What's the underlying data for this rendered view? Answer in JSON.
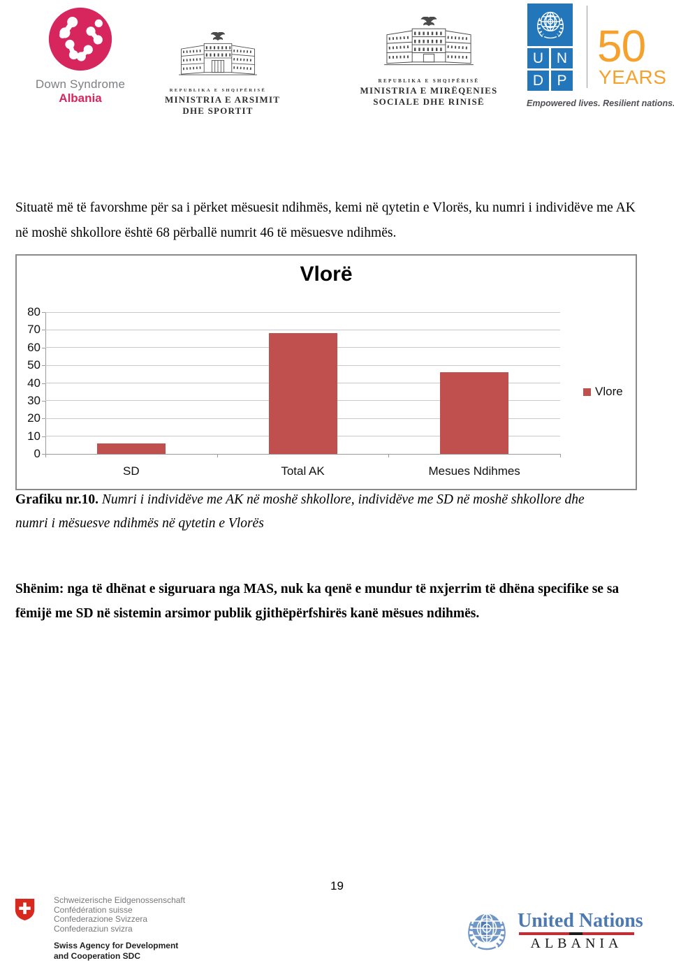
{
  "page": {
    "number": "19"
  },
  "header": {
    "dsa": {
      "name_line1": "Down Syndrome",
      "name_line2": "Albania"
    },
    "mas": {
      "republic": "REPUBLIKA E SHQIPËRISË",
      "line1": "MINISTRIA E ARSIMIT",
      "line2": "DHE SPORTIT"
    },
    "mmsr": {
      "republic": "REPUBLIKA E SHQIPËRISË",
      "line1": "MINISTRIA E MIRËQENIES",
      "line2": "SOCIALE DHE RINISË"
    },
    "undp": {
      "l1": "U",
      "l2": "N",
      "l3": "D",
      "l4": "P",
      "anniversary_number": "50",
      "anniversary_word": "YEARS",
      "tagline": "Empowered lives. Resilient nations."
    }
  },
  "body": {
    "paragraph": "Situatë më të favorshme për sa i përket mësuesit ndihmës, kemi në qytetin e Vlorës, ku numri i individëve me AK në moshë shkollore është 68 përballë numrit 46 të  mësuesve ndihmës.",
    "caption_label": "Grafiku nr.10.",
    "caption_text": " Numri i individëve me AK në moshë shkollore, individëve me SD në moshë shkollore dhe numri i mësuesve ndihmës në qytetin e Vlorës",
    "note": "Shënim: nga të dhënat e siguruara nga MAS, nuk ka qenë e mundur të nxjerrim të dhëna specifike se sa fëmijë me SD në sistemin arsimor publik gjithëpërfshirës kanë mësues ndihmës."
  },
  "chart_data": {
    "type": "bar",
    "title": "Vlorë",
    "categories": [
      "SD",
      "Total AK",
      "Mesues Ndihmes"
    ],
    "series": [
      {
        "name": "Vlore",
        "values": [
          6,
          68,
          46
        ],
        "color": "#c0504d"
      }
    ],
    "xlabel": "",
    "ylabel": "",
    "ylim": [
      0,
      80
    ],
    "ytick_interval": 10,
    "grid": true,
    "legend_position": "right"
  },
  "footer": {
    "sdc": {
      "lines": [
        "Schweizerische Eidgenossenschaft",
        "Confédération suisse",
        "Confederazione Svizzera",
        "Confederaziun svizra"
      ],
      "agency_line1": "Swiss Agency for Development",
      "agency_line2": "and Cooperation SDC"
    },
    "un": {
      "line1": "United Nations",
      "line2": "ALBANIA"
    }
  },
  "colors": {
    "bar_red": "#c0504d",
    "dsa_pink": "#d7265e",
    "undp_blue": "#2276b9",
    "undp_orange": "#f4a12d",
    "un_footer_blue": "#6f96c6",
    "un_text_blue": "#4b79b0",
    "un_line_red": "#cf2630",
    "swiss_red": "#d8291e"
  }
}
